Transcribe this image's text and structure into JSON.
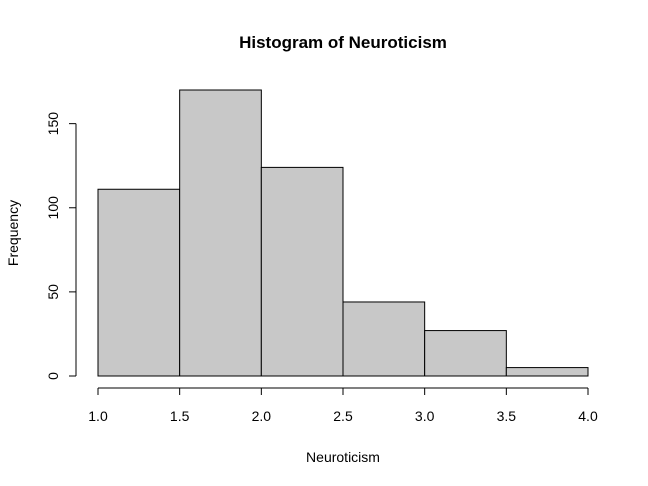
{
  "chart_data": {
    "type": "bar",
    "title": "Histogram of Neuroticism",
    "xlabel": "Neuroticism",
    "ylabel": "Frequency",
    "bins": [
      {
        "start": 1.0,
        "end": 1.5,
        "count": 111
      },
      {
        "start": 1.5,
        "end": 2.0,
        "count": 170
      },
      {
        "start": 2.0,
        "end": 2.5,
        "count": 124
      },
      {
        "start": 2.5,
        "end": 3.0,
        "count": 44
      },
      {
        "start": 3.0,
        "end": 3.5,
        "count": 27
      },
      {
        "start": 3.5,
        "end": 4.0,
        "count": 5
      }
    ],
    "xlim": [
      1.0,
      4.0
    ],
    "ylim": [
      0,
      170
    ],
    "x_ticks": [
      "1.0",
      "1.5",
      "2.0",
      "2.5",
      "3.0",
      "3.5",
      "4.0"
    ],
    "y_ticks": [
      "0",
      "50",
      "100",
      "150"
    ],
    "grid": false,
    "bar_color": "#c8c8c8",
    "edge_color": "#000000"
  }
}
